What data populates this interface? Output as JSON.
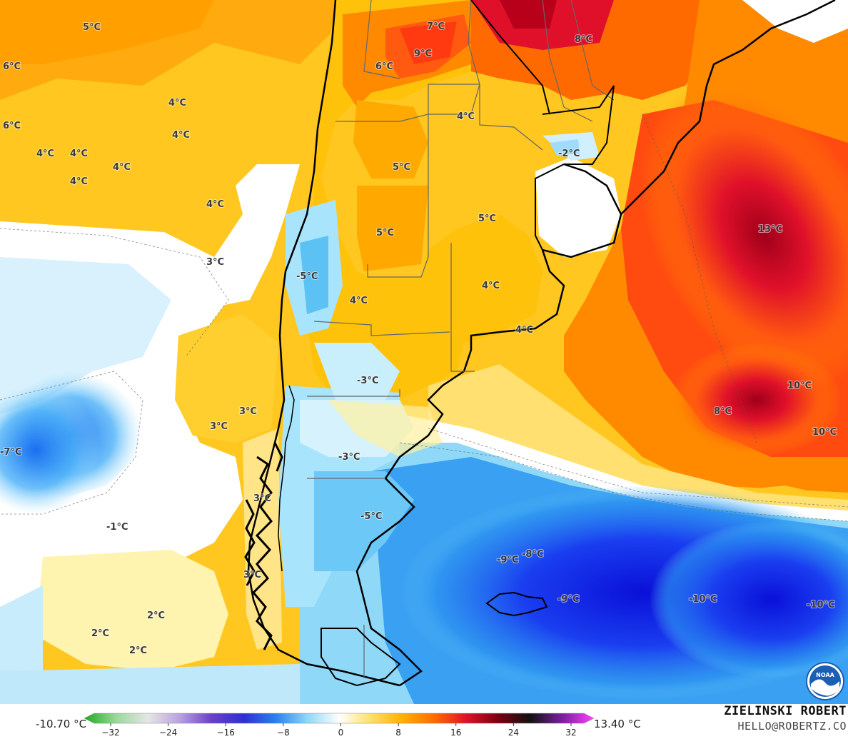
{
  "map": {
    "labels": [
      {
        "text": "5°C"
      },
      {
        "text": "6°C"
      },
      {
        "text": "6°C"
      },
      {
        "text": "4°C"
      },
      {
        "text": "4°C"
      },
      {
        "text": "4°C"
      },
      {
        "text": "4°C"
      },
      {
        "text": "4°C"
      },
      {
        "text": "4°C"
      },
      {
        "text": "4°C"
      },
      {
        "text": "3°C"
      },
      {
        "text": "7°C"
      },
      {
        "text": "9°C"
      },
      {
        "text": "6°C"
      },
      {
        "text": "8°C"
      },
      {
        "text": "4°C"
      },
      {
        "text": "5°C"
      },
      {
        "text": "5°C"
      },
      {
        "text": "5°C"
      },
      {
        "text": "-2°C"
      },
      {
        "text": "13°C"
      },
      {
        "text": "-5°C"
      },
      {
        "text": "4°C"
      },
      {
        "text": "4°C"
      },
      {
        "text": "4°C"
      },
      {
        "text": "-3°C"
      },
      {
        "text": "10°C"
      },
      {
        "text": "8°C"
      },
      {
        "text": "10°C"
      },
      {
        "text": "3°C"
      },
      {
        "text": "3°C"
      },
      {
        "text": "-7°C"
      },
      {
        "text": "-3°C"
      },
      {
        "text": "3°C"
      },
      {
        "text": "-5°C"
      },
      {
        "text": "-1°C"
      },
      {
        "text": "-9°C"
      },
      {
        "text": "-8°C"
      },
      {
        "text": "3°C"
      },
      {
        "text": "-9°C"
      },
      {
        "text": "-10°C"
      },
      {
        "text": "-10°C"
      },
      {
        "text": "2°C"
      },
      {
        "text": "2°C"
      },
      {
        "text": "2°C"
      }
    ]
  },
  "colorbar": {
    "min_label": "-10.70 °C",
    "max_label": "13.40 °C",
    "ticks": [
      "−32",
      "−24",
      "−16",
      "−8",
      "0",
      "8",
      "16",
      "24",
      "32"
    ],
    "stops": [
      "#1faa1f",
      "#9ad99a",
      "#e6e6e6",
      "#b8a0e0",
      "#6b3fc8",
      "#2f2fd6",
      "#2a7ff0",
      "#8fd8f8",
      "#ffffff",
      "#ffe066",
      "#ffb000",
      "#ff6a00",
      "#e0102a",
      "#7a0010",
      "#111111",
      "#7a1fa0",
      "#ff40ff"
    ]
  },
  "credit": {
    "name": "ZIELINSKI ROBERT",
    "email": "HELLO@ROBERTZ.CO"
  },
  "logo": {
    "text": "NOAA"
  }
}
